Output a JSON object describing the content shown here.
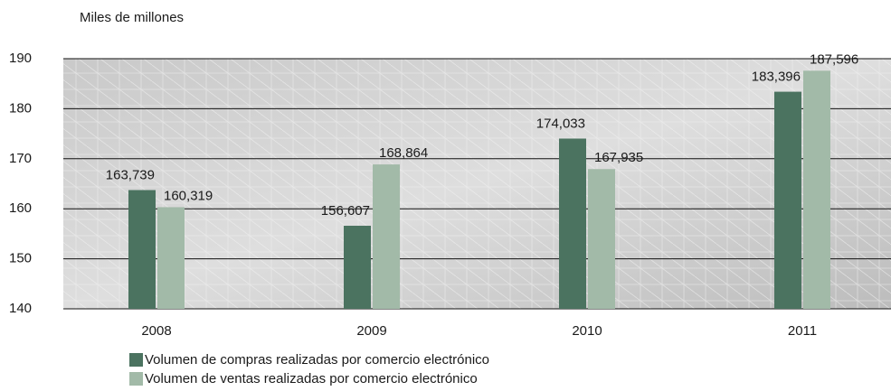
{
  "chart_data": {
    "type": "bar",
    "y_label": "Miles de millones",
    "categories": [
      "2008",
      "2009",
      "2010",
      "2011"
    ],
    "series": [
      {
        "name": "Volumen de compras realizadas por comercio electrónico",
        "color": "#4b7360",
        "values": [
          163.739,
          156.607,
          174.033,
          183.396
        ],
        "value_labels": [
          "163,739",
          "156,607",
          "174,033",
          "183,396"
        ]
      },
      {
        "name": "Volumen de ventas realizadas por comercio electrónico",
        "color": "#a2baa8",
        "values": [
          160.319,
          168.864,
          167.935,
          187.596
        ],
        "value_labels": [
          "160,319",
          "168,864",
          "167,935",
          "187,596"
        ]
      }
    ],
    "ylim": [
      140,
      190
    ],
    "yticks": [
      140,
      150,
      160,
      170,
      180,
      190
    ],
    "grid": true
  }
}
